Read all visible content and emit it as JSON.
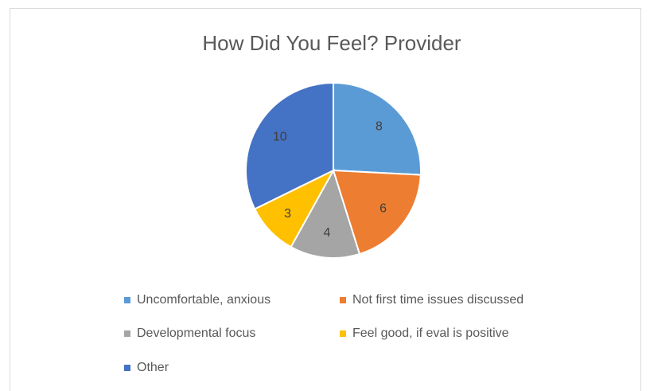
{
  "chart_data": {
    "type": "pie",
    "title": "How Did You Feel? Provider",
    "categories": [
      "Uncomfortable, anxious",
      "Not first time issues discussed",
      "Developmental focus",
      "Feel good, if eval is positive",
      "Other"
    ],
    "values": [
      8,
      6,
      4,
      3,
      10
    ],
    "colors": [
      "#5b9bd5",
      "#ed7d31",
      "#a5a5a5",
      "#ffc000",
      "#4472c4"
    ],
    "legend": "bottom"
  }
}
